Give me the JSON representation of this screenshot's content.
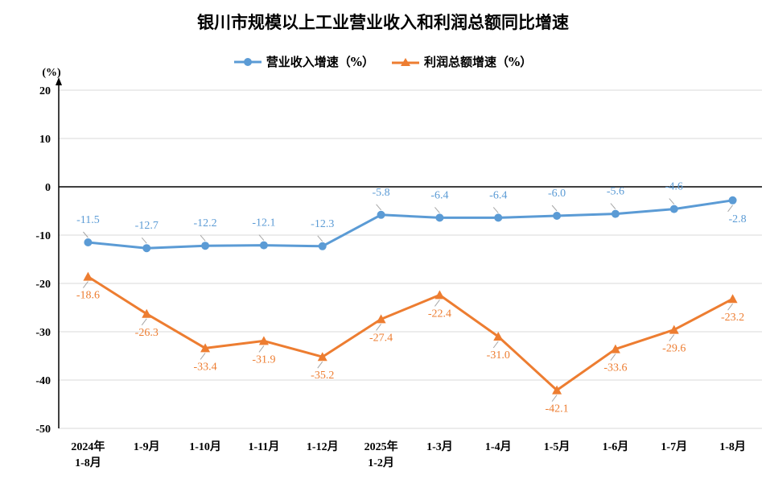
{
  "chart_data": {
    "type": "line",
    "title": "银川市规模以上工业营业收入和利润总额同比增速",
    "ylabel": "(%)",
    "ylim": [
      -50,
      20
    ],
    "yticks": [
      20,
      10,
      0,
      -10,
      -20,
      -30,
      -40,
      -50
    ],
    "grid": true,
    "legend_position": "top",
    "categories": [
      [
        "2024年",
        "1-8月"
      ],
      [
        "1-9月"
      ],
      [
        "1-10月"
      ],
      [
        "1-11月"
      ],
      [
        "1-12月"
      ],
      [
        "2025年",
        "1-2月"
      ],
      [
        "1-3月"
      ],
      [
        "1-4月"
      ],
      [
        "1-5月"
      ],
      [
        "1-6月"
      ],
      [
        "1-7月"
      ],
      [
        "1-8月"
      ]
    ],
    "series": [
      {
        "name": "营业收入增速（%）",
        "color": "#5B9BD5",
        "marker": "circle",
        "values": [
          -11.5,
          -12.7,
          -12.2,
          -12.1,
          -12.3,
          -5.8,
          -6.4,
          -6.4,
          -6.0,
          -5.6,
          -4.6,
          -2.8
        ],
        "labels": [
          "-11.5",
          "-12.7",
          "-12.2",
          "-12.1",
          "-12.3",
          "-5.8",
          "-6.4",
          "-6.4",
          "-6.0",
          "-5.6",
          "-4.6",
          "-2.8"
        ]
      },
      {
        "name": "利润总额增速（%）",
        "color": "#ED7D31",
        "marker": "triangle",
        "values": [
          -18.6,
          -26.3,
          -33.4,
          -31.9,
          -35.2,
          -27.4,
          -22.4,
          -31.0,
          -42.1,
          -33.6,
          -29.6,
          -23.2
        ],
        "labels": [
          "-18.6",
          "-26.3",
          "-33.4",
          "-31.9",
          "-35.2",
          "-27.4",
          "-22.4",
          "-31.0",
          "-42.1",
          "-33.6",
          "-29.6",
          "-23.2"
        ]
      }
    ]
  }
}
